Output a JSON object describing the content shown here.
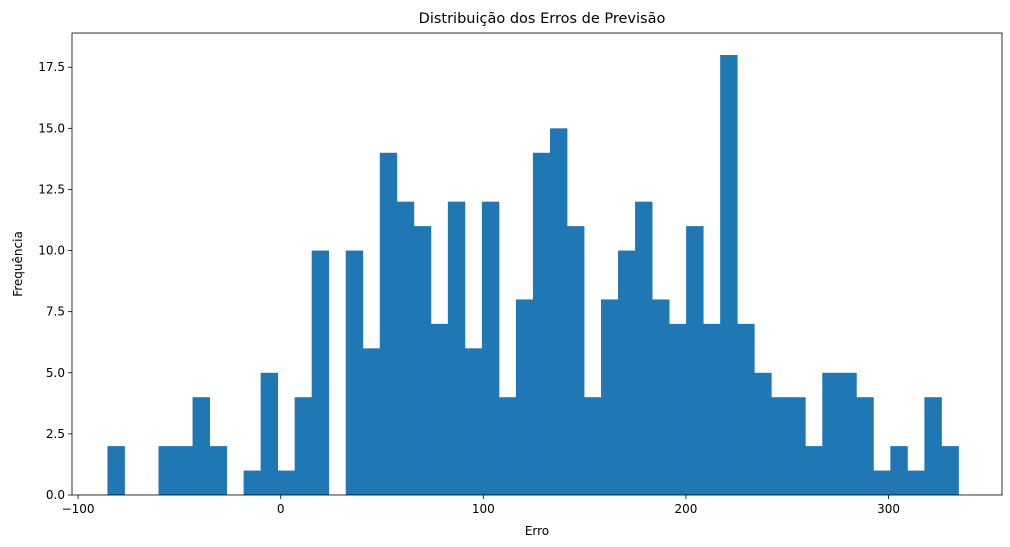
{
  "chart_data": {
    "type": "bar",
    "title": "Distribuição dos Erros de Previsão",
    "xlabel": "Erro",
    "ylabel": "Frequência",
    "xlim": [
      -103,
      356
    ],
    "ylim": [
      0,
      18.9
    ],
    "xticks": [
      -100,
      0,
      100,
      200,
      300
    ],
    "xtick_labels": [
      "−100",
      "0",
      "100",
      "200",
      "300"
    ],
    "yticks": [
      0,
      2.5,
      5,
      7.5,
      10,
      12.5,
      15,
      17.5
    ],
    "ytick_labels": [
      "0.0",
      "2.5",
      "5.0",
      "7.5",
      "10.0",
      "12.5",
      "15.0",
      "17.5"
    ],
    "grid": false,
    "bar_color": "#1f77b4",
    "bin_start": -85.5,
    "bin_width": 8.4,
    "values": [
      2,
      0,
      0,
      2,
      2,
      4,
      2,
      0,
      1,
      5,
      1,
      4,
      10,
      0,
      10,
      6,
      14,
      12,
      11,
      7,
      12,
      6,
      12,
      4,
      8,
      14,
      15,
      11,
      4,
      8,
      10,
      12,
      8,
      7,
      11,
      7,
      18,
      7,
      5,
      4,
      4,
      2,
      5,
      5,
      4,
      1,
      2,
      1,
      4,
      2
    ]
  }
}
